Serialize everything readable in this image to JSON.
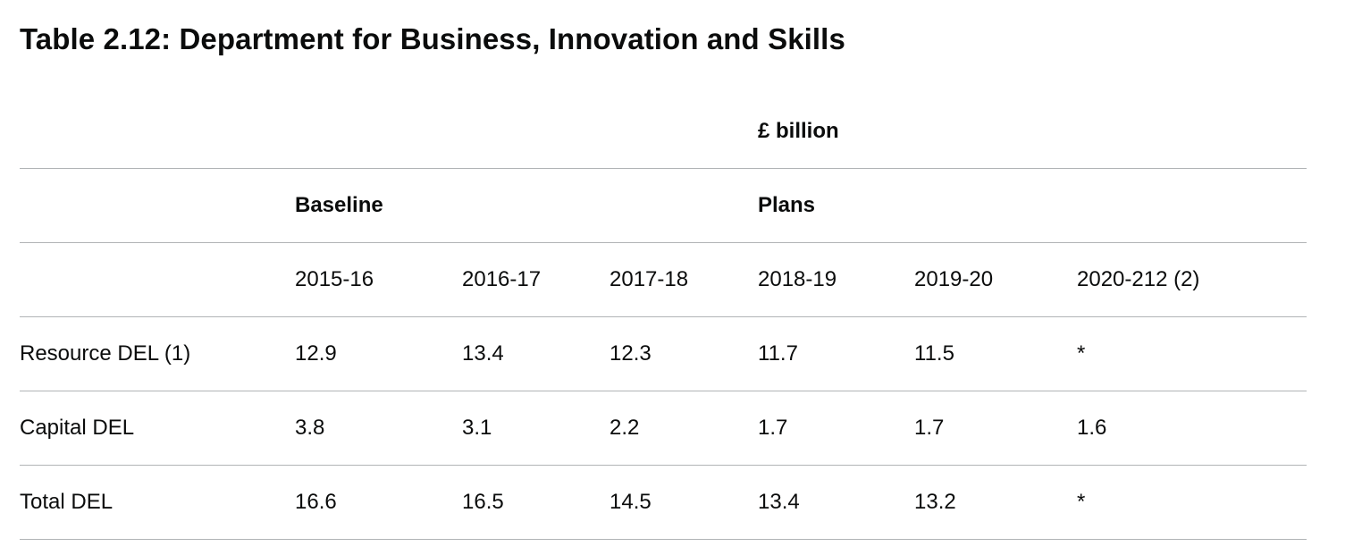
{
  "title": "Table 2.12: Department for Business, Innovation and Skills",
  "unit_label": "£ billion",
  "group_headers": {
    "baseline": "Baseline",
    "plans": "Plans"
  },
  "years": [
    "2015-16",
    "2016-17",
    "2017-18",
    "2018-19",
    "2019-20",
    "2020-212 (2)"
  ],
  "rows": [
    {
      "label": "Resource DEL (1)",
      "values": [
        "12.9",
        "13.4",
        "12.3",
        "11.7",
        "11.5",
        "*"
      ]
    },
    {
      "label": "Capital DEL",
      "values": [
        "3.8",
        "3.1",
        "2.2",
        "1.7",
        "1.7",
        "1.6"
      ]
    },
    {
      "label": "Total DEL",
      "values": [
        "16.6",
        "16.5",
        "14.5",
        "13.4",
        "13.2",
        "*"
      ]
    }
  ]
}
